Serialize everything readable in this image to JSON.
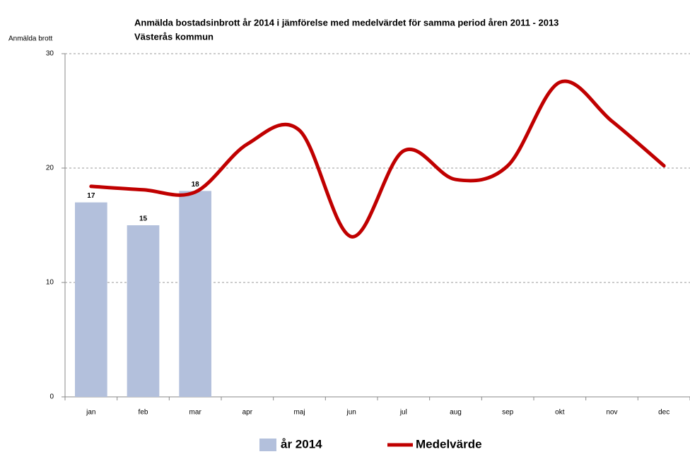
{
  "chart_data": {
    "type": "bar_line",
    "title": "Anmälda bostadsinbrott år 2014 i jämförelse med medelvärdet för samma period åren 2011 - 2013",
    "subtitle": "Västerås kommun",
    "y_label": "Anmälda brott",
    "categories": [
      "jan",
      "feb",
      "mar",
      "apr",
      "maj",
      "jun",
      "jul",
      "aug",
      "sep",
      "okt",
      "nov",
      "dec"
    ],
    "series": [
      {
        "name": "år 2014",
        "type": "bar",
        "color": "#b3c0dc",
        "values": [
          17,
          15,
          18,
          null,
          null,
          null,
          null,
          null,
          null,
          null,
          null,
          null
        ]
      },
      {
        "name": "Medelvärde",
        "type": "line",
        "color": "#c00000",
        "values": [
          18.4,
          18.1,
          17.9,
          22.1,
          23.3,
          14.0,
          21.5,
          19.0,
          20.2,
          27.5,
          24.1,
          20.2
        ]
      }
    ],
    "ylim": [
      0,
      30
    ],
    "yticks": [
      0,
      10,
      20,
      30
    ],
    "grid": true,
    "legend": "bottom"
  }
}
